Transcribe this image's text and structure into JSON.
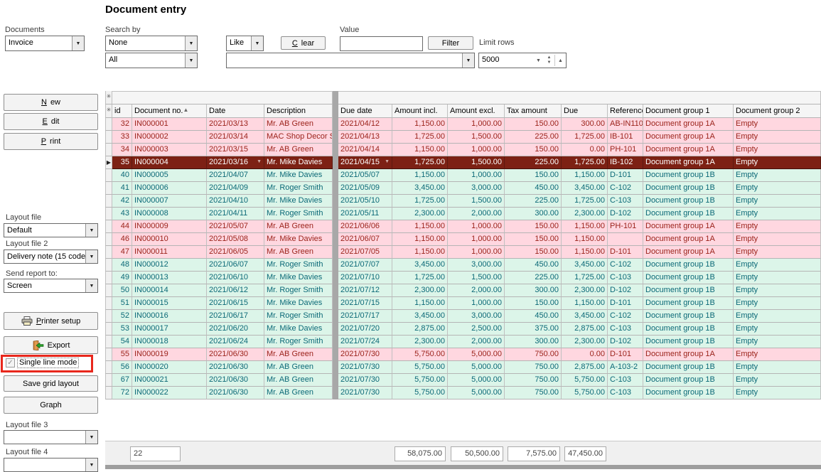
{
  "title": "Document entry",
  "filters": {
    "documents_label": "Documents",
    "documents_value": "Invoice",
    "search_by_label": "Search by",
    "search_by_value": "None",
    "search_by_secondary_value": "All",
    "match_operator_value": "Like",
    "clear_button": "Clear",
    "value_label": "Value",
    "value_input": "",
    "filter_button": "Filter",
    "limit_rows_label": "Limit rows",
    "limit_rows_value": "5000",
    "search_text_value": ""
  },
  "sidebar": {
    "new_button": "New",
    "edit_button": "Edit",
    "print_button": "Print",
    "layout_file_label": "Layout file",
    "layout_file_value": "Default",
    "layout_file2_label": "Layout file 2",
    "layout_file2_value": "Delivery note (15 code",
    "send_report_label": "Send report to:",
    "send_report_value": "Screen",
    "printer_setup_button": "Printer setup",
    "export_button": "Export",
    "single_line_mode_label": "Single line mode",
    "single_line_mode_checked": true,
    "save_grid_layout_button": "Save grid layout",
    "graph_button": "Graph",
    "layout_file3_label": "Layout file 3",
    "layout_file3_value": "",
    "layout_file4_label": "Layout file 4",
    "layout_file4_value": ""
  },
  "grid": {
    "columns": [
      "id",
      "Document no.",
      "Date",
      "Description",
      "Due date",
      "Amount incl.",
      "Amount excl.",
      "Tax amount",
      "Due",
      "Reference",
      "Document group 1",
      "Document group 2"
    ],
    "sort": {
      "column": "Document no.",
      "direction": "asc"
    },
    "selected_row_id": "35",
    "rows": [
      {
        "id": "32",
        "document_no": "IN000001",
        "date": "2021/03/13",
        "description": "Mr. AB Green",
        "due_date": "2021/04/12",
        "amount_incl": "1,150.00",
        "amount_excl": "1,000.00",
        "tax_amount": "150.00",
        "due": "300.00",
        "reference": "AB-IN110",
        "group1": "Document group 1A",
        "group2": "Empty"
      },
      {
        "id": "33",
        "document_no": "IN000002",
        "date": "2021/03/14",
        "description": "MAC Shop Decor Sp",
        "due_date": "2021/04/13",
        "amount_incl": "1,725.00",
        "amount_excl": "1,500.00",
        "tax_amount": "225.00",
        "due": "1,725.00",
        "reference": "IB-101",
        "group1": "Document group 1A",
        "group2": "Empty"
      },
      {
        "id": "34",
        "document_no": "IN000003",
        "date": "2021/03/15",
        "description": "Mr. AB Green",
        "due_date": "2021/04/14",
        "amount_incl": "1,150.00",
        "amount_excl": "1,000.00",
        "tax_amount": "150.00",
        "due": "0.00",
        "reference": "PH-101",
        "group1": "Document group 1A",
        "group2": "Empty"
      },
      {
        "id": "35",
        "document_no": "IN000004",
        "date": "2021/03/16",
        "description": "Mr. Mike Davies",
        "due_date": "2021/04/15",
        "amount_incl": "1,725.00",
        "amount_excl": "1,500.00",
        "tax_amount": "225.00",
        "due": "1,725.00",
        "reference": "IB-102",
        "group1": "Document group 1A",
        "group2": "Empty"
      },
      {
        "id": "40",
        "document_no": "IN000005",
        "date": "2021/04/07",
        "description": "Mr. Mike Davies",
        "due_date": "2021/05/07",
        "amount_incl": "1,150.00",
        "amount_excl": "1,000.00",
        "tax_amount": "150.00",
        "due": "1,150.00",
        "reference": "D-101",
        "group1": "Document group 1B",
        "group2": "Empty"
      },
      {
        "id": "41",
        "document_no": "IN000006",
        "date": "2021/04/09",
        "description": "Mr. Roger Smith",
        "due_date": "2021/05/09",
        "amount_incl": "3,450.00",
        "amount_excl": "3,000.00",
        "tax_amount": "450.00",
        "due": "3,450.00",
        "reference": "C-102",
        "group1": "Document group 1B",
        "group2": "Empty"
      },
      {
        "id": "42",
        "document_no": "IN000007",
        "date": "2021/04/10",
        "description": "Mr. Mike Davies",
        "due_date": "2021/05/10",
        "amount_incl": "1,725.00",
        "amount_excl": "1,500.00",
        "tax_amount": "225.00",
        "due": "1,725.00",
        "reference": "C-103",
        "group1": "Document group 1B",
        "group2": "Empty"
      },
      {
        "id": "43",
        "document_no": "IN000008",
        "date": "2021/04/11",
        "description": "Mr. Roger Smith",
        "due_date": "2021/05/11",
        "amount_incl": "2,300.00",
        "amount_excl": "2,000.00",
        "tax_amount": "300.00",
        "due": "2,300.00",
        "reference": "D-102",
        "group1": "Document group 1B",
        "group2": "Empty"
      },
      {
        "id": "44",
        "document_no": "IN000009",
        "date": "2021/05/07",
        "description": "Mr. AB Green",
        "due_date": "2021/06/06",
        "amount_incl": "1,150.00",
        "amount_excl": "1,000.00",
        "tax_amount": "150.00",
        "due": "1,150.00",
        "reference": "PH-101",
        "group1": "Document group 1A",
        "group2": "Empty"
      },
      {
        "id": "46",
        "document_no": "IN000010",
        "date": "2021/05/08",
        "description": "Mr. Mike Davies",
        "due_date": "2021/06/07",
        "amount_incl": "1,150.00",
        "amount_excl": "1,000.00",
        "tax_amount": "150.00",
        "due": "1,150.00",
        "reference": "",
        "group1": "Document group 1A",
        "group2": "Empty"
      },
      {
        "id": "47",
        "document_no": "IN000011",
        "date": "2021/06/05",
        "description": "Mr. AB Green",
        "due_date": "2021/07/05",
        "amount_incl": "1,150.00",
        "amount_excl": "1,000.00",
        "tax_amount": "150.00",
        "due": "1,150.00",
        "reference": "D-101",
        "group1": "Document group 1A",
        "group2": "Empty"
      },
      {
        "id": "48",
        "document_no": "IN000012",
        "date": "2021/06/07",
        "description": "Mr. Roger Smith",
        "due_date": "2021/07/07",
        "amount_incl": "3,450.00",
        "amount_excl": "3,000.00",
        "tax_amount": "450.00",
        "due": "3,450.00",
        "reference": "C-102",
        "group1": "Document group 1B",
        "group2": "Empty"
      },
      {
        "id": "49",
        "document_no": "IN000013",
        "date": "2021/06/10",
        "description": "Mr. Mike Davies",
        "due_date": "2021/07/10",
        "amount_incl": "1,725.00",
        "amount_excl": "1,500.00",
        "tax_amount": "225.00",
        "due": "1,725.00",
        "reference": "C-103",
        "group1": "Document group 1B",
        "group2": "Empty"
      },
      {
        "id": "50",
        "document_no": "IN000014",
        "date": "2021/06/12",
        "description": "Mr. Roger Smith",
        "due_date": "2021/07/12",
        "amount_incl": "2,300.00",
        "amount_excl": "2,000.00",
        "tax_amount": "300.00",
        "due": "2,300.00",
        "reference": "D-102",
        "group1": "Document group 1B",
        "group2": "Empty"
      },
      {
        "id": "51",
        "document_no": "IN000015",
        "date": "2021/06/15",
        "description": "Mr. Mike Davies",
        "due_date": "2021/07/15",
        "amount_incl": "1,150.00",
        "amount_excl": "1,000.00",
        "tax_amount": "150.00",
        "due": "1,150.00",
        "reference": "D-101",
        "group1": "Document group 1B",
        "group2": "Empty"
      },
      {
        "id": "52",
        "document_no": "IN000016",
        "date": "2021/06/17",
        "description": "Mr. Roger Smith",
        "due_date": "2021/07/17",
        "amount_incl": "3,450.00",
        "amount_excl": "3,000.00",
        "tax_amount": "450.00",
        "due": "3,450.00",
        "reference": "C-102",
        "group1": "Document group 1B",
        "group2": "Empty"
      },
      {
        "id": "53",
        "document_no": "IN000017",
        "date": "2021/06/20",
        "description": "Mr. Mike Davies",
        "due_date": "2021/07/20",
        "amount_incl": "2,875.00",
        "amount_excl": "2,500.00",
        "tax_amount": "375.00",
        "due": "2,875.00",
        "reference": "C-103",
        "group1": "Document group 1B",
        "group2": "Empty"
      },
      {
        "id": "54",
        "document_no": "IN000018",
        "date": "2021/06/24",
        "description": "Mr. Roger Smith",
        "due_date": "2021/07/24",
        "amount_incl": "2,300.00",
        "amount_excl": "2,000.00",
        "tax_amount": "300.00",
        "due": "2,300.00",
        "reference": "D-102",
        "group1": "Document group 1B",
        "group2": "Empty"
      },
      {
        "id": "55",
        "document_no": "IN000019",
        "date": "2021/06/30",
        "description": "Mr. AB Green",
        "due_date": "2021/07/30",
        "amount_incl": "5,750.00",
        "amount_excl": "5,000.00",
        "tax_amount": "750.00",
        "due": "0.00",
        "reference": "D-101",
        "group1": "Document group 1A",
        "group2": "Empty"
      },
      {
        "id": "56",
        "document_no": "IN000020",
        "date": "2021/06/30",
        "description": "Mr. AB Green",
        "due_date": "2021/07/30",
        "amount_incl": "5,750.00",
        "amount_excl": "5,000.00",
        "tax_amount": "750.00",
        "due": "2,875.00",
        "reference": "A-103-2",
        "group1": "Document group 1B",
        "group2": "Empty"
      },
      {
        "id": "67",
        "document_no": "IN000021",
        "date": "2021/06/30",
        "description": "Mr. AB Green",
        "due_date": "2021/07/30",
        "amount_incl": "5,750.00",
        "amount_excl": "5,000.00",
        "tax_amount": "750.00",
        "due": "5,750.00",
        "reference": "C-103",
        "group1": "Document group 1B",
        "group2": "Empty"
      },
      {
        "id": "72",
        "document_no": "IN000022",
        "date": "2021/06/30",
        "description": "Mr. AB Green",
        "due_date": "2021/07/30",
        "amount_incl": "5,750.00",
        "amount_excl": "5,000.00",
        "tax_amount": "750.00",
        "due": "5,750.00",
        "reference": "C-103",
        "group1": "Document group 1B",
        "group2": "Empty"
      }
    ],
    "footer": {
      "count": "22",
      "amount_incl_total": "58,075.00",
      "amount_excl_total": "50,500.00",
      "tax_amount_total": "7,575.00",
      "due_total": "47,450.00"
    }
  },
  "icons": {
    "sort_asc": "▲",
    "dropdown_arrow": "▼",
    "spin_up": "▲",
    "spin_down": "▼",
    "row_indicator": "▶",
    "header_star": "✳",
    "checkbox_check": "✓"
  },
  "colors": {
    "group_1a_bg": "#ffd7e0",
    "group_1a_text": "#9b231b",
    "group_1b_bg": "#dcf5e9",
    "group_1b_text": "#0b6977",
    "selected_bg": "#7d2114",
    "selected_text": "#ffffff",
    "highlight_red": "#e8271c"
  }
}
